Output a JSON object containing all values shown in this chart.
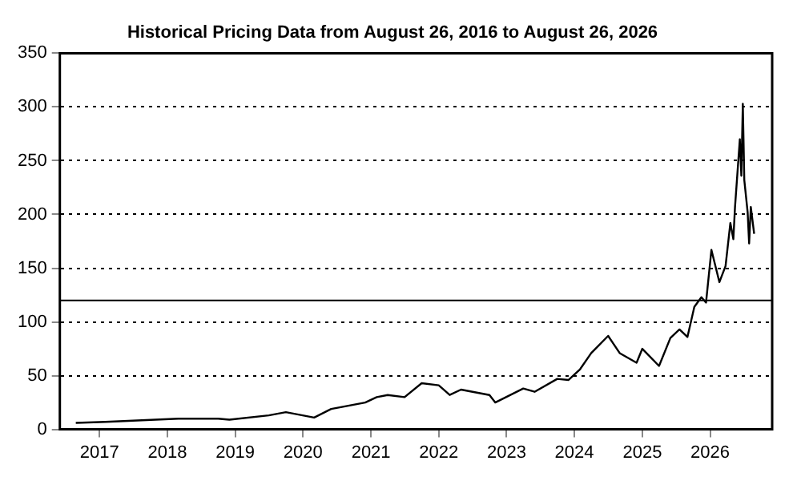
{
  "chart_data": {
    "type": "line",
    "title": "Historical Pricing Data from August 26, 2016 to August 26, 2026",
    "x": [
      "2016-08-26",
      "2017-02",
      "2018-03",
      "2018-10",
      "2018-12",
      "2019-07",
      "2019-10",
      "2020-03",
      "2020-06",
      "2020-12",
      "2021-02",
      "2021-04",
      "2021-07",
      "2021-10",
      "2022-01",
      "2022-03",
      "2022-05",
      "2022-10",
      "2022-11",
      "2023-04",
      "2023-06",
      "2023-10",
      "2023-12",
      "2024-02",
      "2024-04",
      "2024-07",
      "2024-09",
      "2024-12",
      "2025-01",
      "2025-04",
      "2025-06",
      "2025-07-20",
      "2025-09",
      "2025-10-08",
      "2025-11-15",
      "2025-12-10",
      "2026-01-08",
      "2026-02-20",
      "2026-03-25",
      "2026-04-20",
      "2026-05-06",
      "2026-05-15",
      "2026-06-10",
      "2026-06-18",
      "2026-06-26",
      "2026-07-04",
      "2026-07-22",
      "2026-07-30",
      "2026-08-08",
      "2026-08-26"
    ],
    "series": [
      {
        "color": "#000000",
        "values": [
          6,
          7,
          10,
          10,
          9,
          13,
          16,
          11,
          19,
          25,
          30,
          32,
          30,
          43,
          41,
          32,
          37,
          32,
          25,
          38,
          35,
          47,
          46,
          56,
          71,
          87,
          71,
          62,
          75,
          59,
          85,
          93,
          86,
          114,
          123,
          118,
          167,
          137,
          152,
          192,
          177,
          207,
          270,
          236,
          303,
          232,
          202,
          173,
          207,
          182
        ]
      }
    ],
    "xlim": [
      "2016-06",
      "2026-12"
    ],
    "xticks": [
      "2017",
      "2018",
      "2019",
      "2020",
      "2021",
      "2022",
      "2023",
      "2024",
      "2025",
      "2026"
    ],
    "ylim": [
      0,
      350
    ],
    "yticks": [
      0,
      50,
      100,
      150,
      200,
      250,
      300,
      350
    ],
    "grid": "y",
    "legend": false,
    "marker": "none",
    "line_style": "solid",
    "ref_lines": [
      {
        "axis": "y",
        "value": 120,
        "color": "#000000"
      }
    ]
  }
}
